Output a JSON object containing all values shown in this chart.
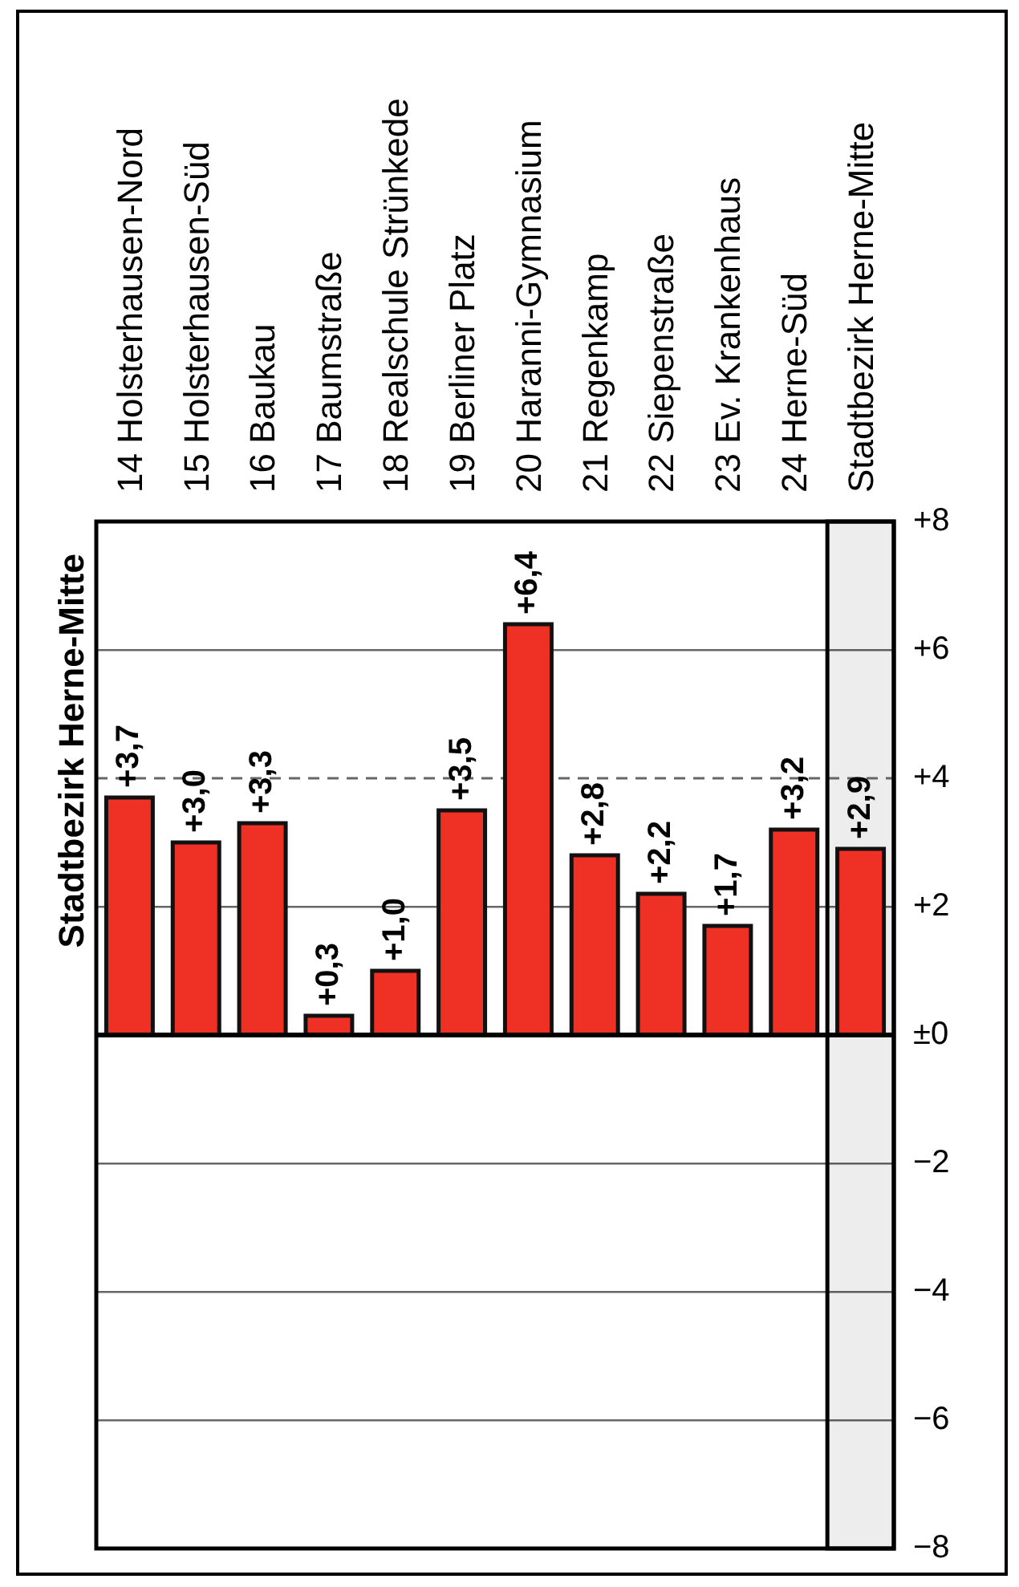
{
  "chart_data": {
    "type": "bar",
    "title": "Stadtbezirk Herne-Mitte",
    "categories": [
      "14 Holsterhausen-Nord",
      "15 Holsterhausen-Süd",
      "16 Baukau",
      "17 Baumstraße",
      "18 Realschule Strünkede",
      "19 Berliner Platz",
      "20 Haranni-Gymnasium",
      "21 Regenkamp",
      "22 Siepenstraße",
      "23 Ev. Krankenhaus",
      "24 Herne-Süd",
      "Stadtbezirk Herne-Mitte"
    ],
    "values": [
      3.7,
      3.0,
      3.3,
      0.3,
      1.0,
      3.5,
      6.4,
      2.8,
      2.2,
      1.7,
      3.2,
      2.9
    ],
    "color": "#ee3124",
    "value_labels": [
      "+3,7",
      "+3,0",
      "+3,3",
      "+0,3",
      "+1,0",
      "+3,5",
      "+6,4",
      "+2,8",
      "+2,2",
      "+1,7",
      "+3,2",
      "+2,9"
    ],
    "ylim": [
      -8,
      8
    ],
    "yticks": [
      {
        "value": -8,
        "label": "−8"
      },
      {
        "value": -6,
        "label": "−6"
      },
      {
        "value": -4,
        "label": "−4"
      },
      {
        "value": -2,
        "label": "−2"
      },
      {
        "value": 0,
        "label": "±0"
      },
      {
        "value": 2,
        "label": "+2"
      },
      {
        "value": 4,
        "label": "+4"
      },
      {
        "value": 6,
        "label": "+6"
      },
      {
        "value": 8,
        "label": "+8"
      }
    ],
    "grid": "y",
    "ref_lines": [
      {
        "axis": "y",
        "value": 4,
        "color": "#666666",
        "line_style": "dashed"
      }
    ],
    "bands": [
      {
        "axis": "x",
        "from": "Stadtbezirk Herne-Mitte",
        "to": "Stadtbezirk Herne-Mitte"
      }
    ]
  }
}
